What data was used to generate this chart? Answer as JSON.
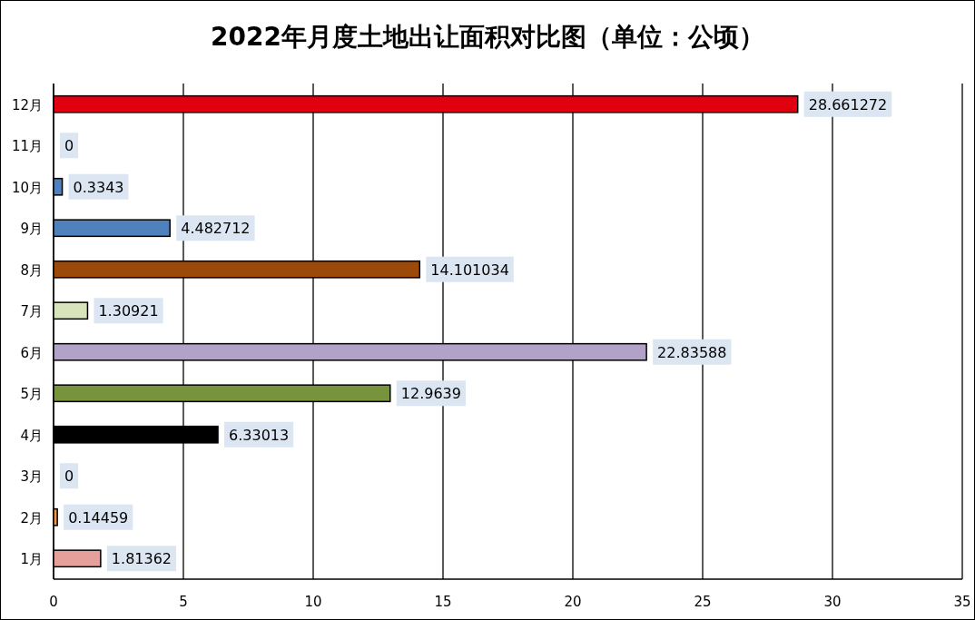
{
  "chart_data": {
    "type": "bar",
    "orientation": "horizontal",
    "title": "2022年月度土地出让面积对比图（单位：公顷）",
    "categories": [
      "12月",
      "11月",
      "10月",
      "9月",
      "8月",
      "7月",
      "6月",
      "5月",
      "4月",
      "3月",
      "2月",
      "1月"
    ],
    "values": [
      28.661272,
      0,
      0.3343,
      4.482712,
      14.101034,
      1.30921,
      22.83588,
      12.9639,
      6.33013,
      0,
      0.14459,
      1.81362
    ],
    "colors": [
      "#e00010",
      "#4f81bd",
      "#4f81bd",
      "#4f81bd",
      "#9c4a0a",
      "#d7e4bc",
      "#b3a2c7",
      "#77933c",
      "#000000",
      "#f79646",
      "#f79646",
      "#e6a09c"
    ],
    "xlim": [
      0,
      35
    ],
    "xticks": [
      0,
      5,
      10,
      15,
      20,
      25,
      30,
      35
    ],
    "grid": "x",
    "data_labels": true
  }
}
